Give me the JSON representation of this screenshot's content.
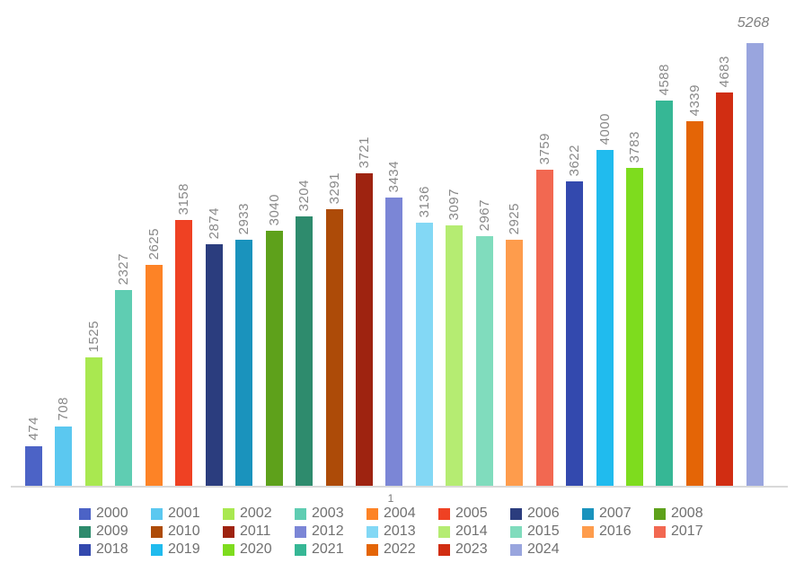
{
  "chart_data": {
    "type": "bar",
    "title": "",
    "xlabel": "",
    "ylabel": "",
    "categories": [
      "1"
    ],
    "ylim": [
      0,
      5268
    ],
    "grid": false,
    "legend_position": "bottom",
    "data_label_rotation": -90,
    "series": [
      {
        "name": "2000",
        "value": 474,
        "color": "#4C63C6",
        "label_style": "rotated"
      },
      {
        "name": "2001",
        "value": 708,
        "color": "#5BC8F0",
        "label_style": "rotated"
      },
      {
        "name": "2002",
        "value": 1525,
        "color": "#A9E850",
        "label_style": "rotated"
      },
      {
        "name": "2003",
        "value": 2327,
        "color": "#5FCDB2",
        "label_style": "rotated"
      },
      {
        "name": "2004",
        "value": 2625,
        "color": "#FD8326",
        "label_style": "rotated"
      },
      {
        "name": "2005",
        "value": 3158,
        "color": "#EF4123",
        "label_style": "rotated"
      },
      {
        "name": "2006",
        "value": 2874,
        "color": "#2B3D7E",
        "label_style": "rotated"
      },
      {
        "name": "2007",
        "value": 2933,
        "color": "#1A93BD",
        "label_style": "rotated"
      },
      {
        "name": "2008",
        "value": 3040,
        "color": "#5EA11B",
        "label_style": "rotated"
      },
      {
        "name": "2009",
        "value": 3204,
        "color": "#2E8B6D",
        "label_style": "rotated"
      },
      {
        "name": "2010",
        "value": 3291,
        "color": "#AD4B08",
        "label_style": "rotated"
      },
      {
        "name": "2011",
        "value": 3721,
        "color": "#9E2310",
        "label_style": "rotated"
      },
      {
        "name": "2012",
        "value": 3434,
        "color": "#7B86D6",
        "label_style": "rotated"
      },
      {
        "name": "2013",
        "value": 3136,
        "color": "#83D8F5",
        "label_style": "rotated"
      },
      {
        "name": "2014",
        "value": 3097,
        "color": "#B5EC72",
        "label_style": "rotated"
      },
      {
        "name": "2015",
        "value": 2967,
        "color": "#80DCBD",
        "label_style": "rotated"
      },
      {
        "name": "2016",
        "value": 2925,
        "color": "#FE9C4C",
        "label_style": "rotated"
      },
      {
        "name": "2017",
        "value": 3759,
        "color": "#F26851",
        "label_style": "rotated"
      },
      {
        "name": "2018",
        "value": 3622,
        "color": "#3349AE",
        "label_style": "rotated"
      },
      {
        "name": "2019",
        "value": 4000,
        "color": "#20BBEE",
        "label_style": "rotated"
      },
      {
        "name": "2020",
        "value": 3783,
        "color": "#7EDC1E",
        "label_style": "rotated"
      },
      {
        "name": "2021",
        "value": 4588,
        "color": "#36B795",
        "label_style": "rotated"
      },
      {
        "name": "2022",
        "value": 4339,
        "color": "#E46506",
        "label_style": "rotated"
      },
      {
        "name": "2023",
        "value": 4683,
        "color": "#D12D12",
        "label_style": "rotated"
      },
      {
        "name": "2024",
        "value": 5268,
        "color": "#99A5DE",
        "label_style": "italic-horizontal"
      }
    ]
  },
  "axis": {
    "category_label": "1",
    "line_color": "#D9D9D9"
  },
  "style": {
    "background": "#FFFFFF",
    "data_label_color": "#888888",
    "legend_text_color": "#707070"
  }
}
